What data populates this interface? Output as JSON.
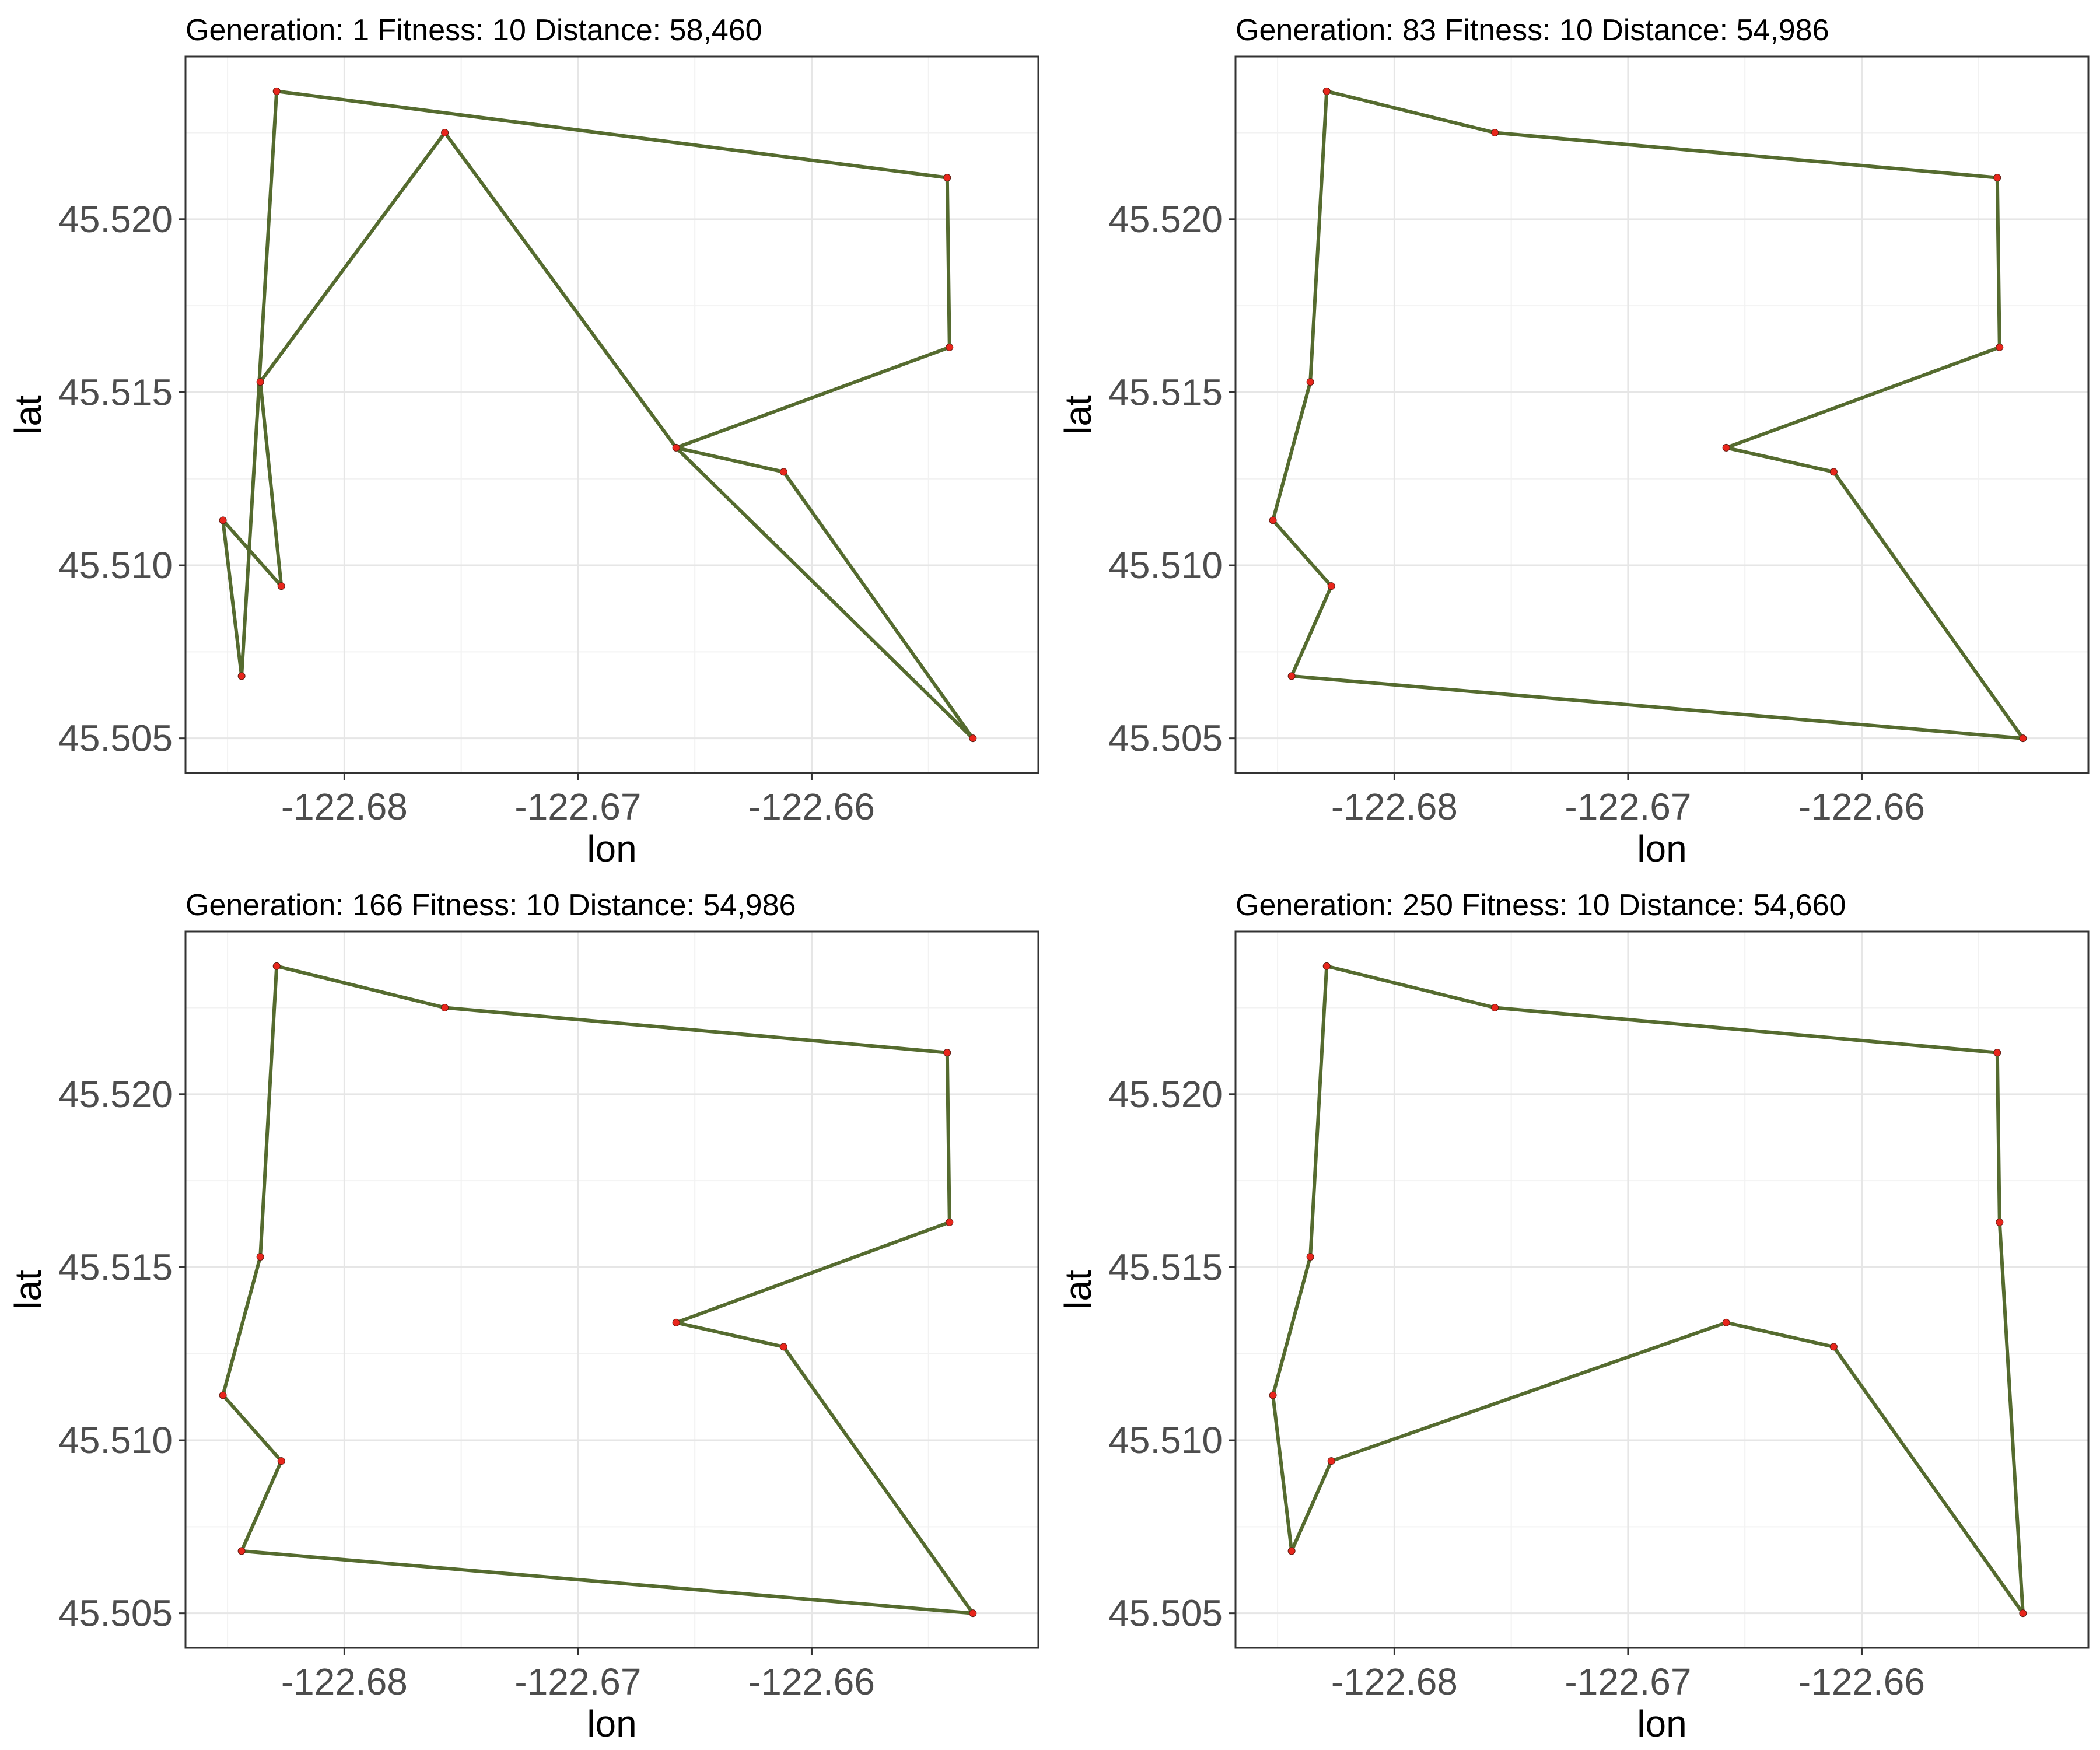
{
  "colors": {
    "route": "#556B2F",
    "point": "#E8261C",
    "point_outline": "#5a1a10",
    "grid_major": "#e6e6e6",
    "grid_minor": "#f2f2f2",
    "panel_border": "#333333",
    "tick_text": "#4d4d4d"
  },
  "chart_data": [
    {
      "type": "line",
      "title": "Generation: 1 Fitness: 10 Distance: 58,460",
      "xlabel": "lon",
      "ylabel": "lat",
      "xlim": [
        -122.6868,
        -122.6503
      ],
      "ylim": [
        45.504,
        45.5247
      ],
      "xticks": [
        -122.68,
        -122.67,
        -122.66
      ],
      "xtick_labels": [
        "-122.68",
        "-122.67",
        "-122.66"
      ],
      "yticks": [
        45.505,
        45.51,
        45.515,
        45.52
      ],
      "ytick_labels": [
        "45.505",
        "45.510",
        "45.515",
        "45.520"
      ],
      "grid": true,
      "route": [
        [
          -122.6852,
          45.5113
        ],
        [
          -122.6827,
          45.5094
        ],
        [
          -122.6836,
          45.5153
        ],
        [
          -122.6757,
          45.5225
        ],
        [
          -122.6658,
          45.5134
        ],
        [
          -122.6541,
          45.5163
        ],
        [
          -122.6542,
          45.5212
        ],
        [
          -122.6829,
          45.5237
        ],
        [
          -122.6844,
          45.5068
        ],
        [
          -122.6852,
          45.5113
        ]
      ],
      "route_extra": [
        [
          -122.6658,
          45.5134
        ],
        [
          -122.6612,
          45.5127
        ],
        [
          -122.6531,
          45.505
        ],
        [
          -122.6658,
          45.5134
        ]
      ],
      "points": [
        [
          -122.6829,
          45.5237
        ],
        [
          -122.6757,
          45.5225
        ],
        [
          -122.6542,
          45.5212
        ],
        [
          -122.6541,
          45.5163
        ],
        [
          -122.6836,
          45.5153
        ],
        [
          -122.6658,
          45.5134
        ],
        [
          -122.6612,
          45.5127
        ],
        [
          -122.6852,
          45.5113
        ],
        [
          -122.6827,
          45.5094
        ],
        [
          -122.6844,
          45.5068
        ],
        [
          -122.6531,
          45.505
        ]
      ]
    },
    {
      "type": "line",
      "title": "Generation: 83 Fitness: 10 Distance: 54,986",
      "xlabel": "lon",
      "ylabel": "lat",
      "xlim": [
        -122.6868,
        -122.6503
      ],
      "ylim": [
        45.504,
        45.5247
      ],
      "xticks": [
        -122.68,
        -122.67,
        -122.66
      ],
      "xtick_labels": [
        "-122.68",
        "-122.67",
        "-122.66"
      ],
      "yticks": [
        45.505,
        45.51,
        45.515,
        45.52
      ],
      "ytick_labels": [
        "45.505",
        "45.510",
        "45.515",
        "45.520"
      ],
      "grid": true,
      "route": [
        [
          -122.6829,
          45.5237
        ],
        [
          -122.6757,
          45.5225
        ],
        [
          -122.6542,
          45.5212
        ],
        [
          -122.6541,
          45.5163
        ],
        [
          -122.6658,
          45.5134
        ],
        [
          -122.6612,
          45.5127
        ],
        [
          -122.6531,
          45.505
        ],
        [
          -122.6844,
          45.5068
        ],
        [
          -122.6827,
          45.5094
        ],
        [
          -122.6852,
          45.5113
        ],
        [
          -122.6836,
          45.5153
        ],
        [
          -122.6829,
          45.5237
        ]
      ],
      "points": [
        [
          -122.6829,
          45.5237
        ],
        [
          -122.6757,
          45.5225
        ],
        [
          -122.6542,
          45.5212
        ],
        [
          -122.6541,
          45.5163
        ],
        [
          -122.6836,
          45.5153
        ],
        [
          -122.6658,
          45.5134
        ],
        [
          -122.6612,
          45.5127
        ],
        [
          -122.6852,
          45.5113
        ],
        [
          -122.6827,
          45.5094
        ],
        [
          -122.6844,
          45.5068
        ],
        [
          -122.6531,
          45.505
        ]
      ]
    },
    {
      "type": "line",
      "title": "Generation: 166 Fitness: 10 Distance: 54,986",
      "xlabel": "lon",
      "ylabel": "lat",
      "xlim": [
        -122.6868,
        -122.6503
      ],
      "ylim": [
        45.504,
        45.5247
      ],
      "xticks": [
        -122.68,
        -122.67,
        -122.66
      ],
      "xtick_labels": [
        "-122.68",
        "-122.67",
        "-122.66"
      ],
      "yticks": [
        45.505,
        45.51,
        45.515,
        45.52
      ],
      "ytick_labels": [
        "45.505",
        "45.510",
        "45.515",
        "45.520"
      ],
      "grid": true,
      "route": [
        [
          -122.6829,
          45.5237
        ],
        [
          -122.6757,
          45.5225
        ],
        [
          -122.6542,
          45.5212
        ],
        [
          -122.6541,
          45.5163
        ],
        [
          -122.6658,
          45.5134
        ],
        [
          -122.6612,
          45.5127
        ],
        [
          -122.6531,
          45.505
        ],
        [
          -122.6844,
          45.5068
        ],
        [
          -122.6827,
          45.5094
        ],
        [
          -122.6852,
          45.5113
        ],
        [
          -122.6836,
          45.5153
        ],
        [
          -122.6829,
          45.5237
        ]
      ],
      "points": [
        [
          -122.6829,
          45.5237
        ],
        [
          -122.6757,
          45.5225
        ],
        [
          -122.6542,
          45.5212
        ],
        [
          -122.6541,
          45.5163
        ],
        [
          -122.6836,
          45.5153
        ],
        [
          -122.6658,
          45.5134
        ],
        [
          -122.6612,
          45.5127
        ],
        [
          -122.6852,
          45.5113
        ],
        [
          -122.6827,
          45.5094
        ],
        [
          -122.6844,
          45.5068
        ],
        [
          -122.6531,
          45.505
        ]
      ]
    },
    {
      "type": "line",
      "title": "Generation: 250 Fitness: 10 Distance: 54,660",
      "xlabel": "lon",
      "ylabel": "lat",
      "xlim": [
        -122.6868,
        -122.6503
      ],
      "ylim": [
        45.504,
        45.5247
      ],
      "xticks": [
        -122.68,
        -122.67,
        -122.66
      ],
      "xtick_labels": [
        "-122.68",
        "-122.67",
        "-122.66"
      ],
      "yticks": [
        45.505,
        45.51,
        45.515,
        45.52
      ],
      "ytick_labels": [
        "45.505",
        "45.510",
        "45.515",
        "45.520"
      ],
      "grid": true,
      "route": [
        [
          -122.6829,
          45.5237
        ],
        [
          -122.6757,
          45.5225
        ],
        [
          -122.6542,
          45.5212
        ],
        [
          -122.6541,
          45.5163
        ],
        [
          -122.6531,
          45.505
        ],
        [
          -122.6612,
          45.5127
        ],
        [
          -122.6658,
          45.5134
        ],
        [
          -122.6827,
          45.5094
        ],
        [
          -122.6844,
          45.5068
        ],
        [
          -122.6852,
          45.5113
        ],
        [
          -122.6836,
          45.5153
        ],
        [
          -122.6829,
          45.5237
        ]
      ],
      "points": [
        [
          -122.6829,
          45.5237
        ],
        [
          -122.6757,
          45.5225
        ],
        [
          -122.6542,
          45.5212
        ],
        [
          -122.6541,
          45.5163
        ],
        [
          -122.6836,
          45.5153
        ],
        [
          -122.6658,
          45.5134
        ],
        [
          -122.6612,
          45.5127
        ],
        [
          -122.6852,
          45.5113
        ],
        [
          -122.6827,
          45.5094
        ],
        [
          -122.6844,
          45.5068
        ],
        [
          -122.6531,
          45.505
        ]
      ]
    }
  ]
}
